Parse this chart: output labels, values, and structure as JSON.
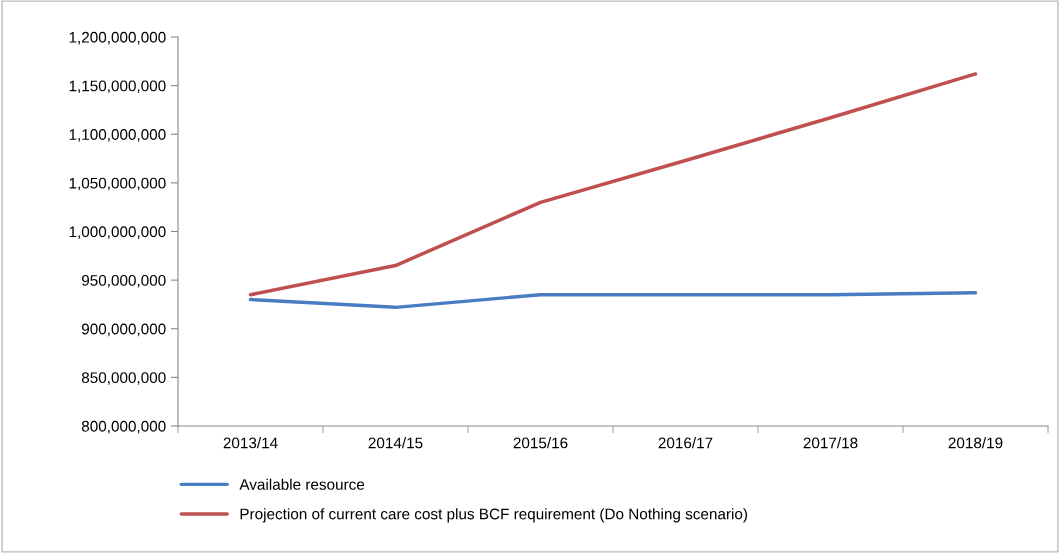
{
  "chart_data": {
    "type": "line",
    "categories": [
      "2013/14",
      "2014/15",
      "2015/16",
      "2016/17",
      "2017/18",
      "2018/19"
    ],
    "series": [
      {
        "name": "Available resource",
        "color": "#4a7cc3",
        "values": [
          930000000,
          922000000,
          935000000,
          935000000,
          935000000,
          937000000
        ]
      },
      {
        "name": "Projection of current care cost plus BCF requirement (Do Nothing scenario)",
        "color": "#c0504d",
        "values": [
          935000000,
          965000000,
          1030000000,
          1073000000,
          1117000000,
          1162000000
        ]
      }
    ],
    "ylim": [
      800000000,
      1200000000
    ],
    "yticks": [
      {
        "value": 800000000,
        "label": "800,000,000"
      },
      {
        "value": 850000000,
        "label": "850,000,000"
      },
      {
        "value": 900000000,
        "label": "900,000,000"
      },
      {
        "value": 950000000,
        "label": "950,000,000"
      },
      {
        "value": 1000000000,
        "label": "1,000,000,000"
      },
      {
        "value": 1050000000,
        "label": "1,050,000,000"
      },
      {
        "value": 1100000000,
        "label": "1,100,000,000"
      },
      {
        "value": 1150000000,
        "label": "1,150,000,000"
      },
      {
        "value": 1200000000,
        "label": "1,200,000,000"
      }
    ],
    "grid": false,
    "legend": "bottom",
    "marker": "none",
    "line_style": "solid"
  }
}
